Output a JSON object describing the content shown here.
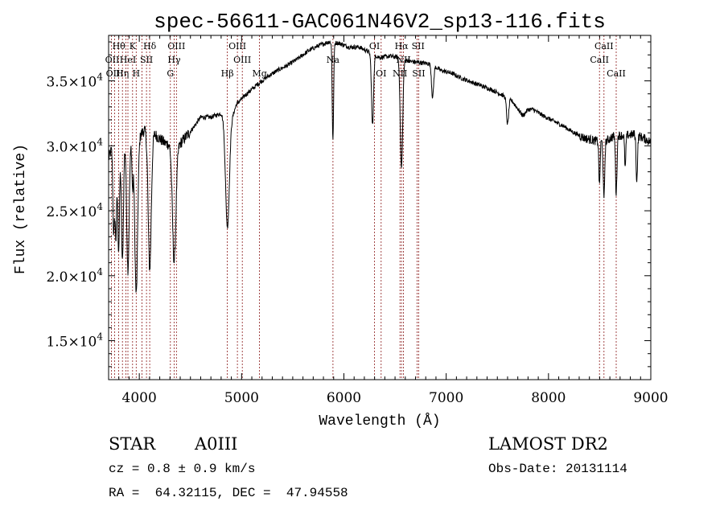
{
  "chart_data": {
    "type": "line",
    "title": "spec-56611-GAC061N46V2_sp13-116.fits",
    "xlabel": "Wavelength (Å)",
    "ylabel": "Flux (relative)",
    "xlim": [
      3700,
      9000
    ],
    "ylim": [
      12000,
      38500
    ],
    "grid": false,
    "x_ticks": [
      4000,
      5000,
      6000,
      7000,
      8000,
      9000
    ],
    "x_tick_labels": [
      "4000",
      "5000",
      "6000",
      "7000",
      "8000",
      "9000"
    ],
    "y_ticks": [
      15000,
      20000,
      25000,
      30000,
      35000
    ],
    "y_tick_labels": [
      {
        "mantissa": "1.5",
        "exp": "4"
      },
      {
        "mantissa": "2.0",
        "exp": "4"
      },
      {
        "mantissa": "2.5",
        "exp": "4"
      },
      {
        "mantissa": "3.0",
        "exp": "4"
      },
      {
        "mantissa": "3.5",
        "exp": "4"
      }
    ],
    "line_color": "#000000",
    "marker_color": "#8b1a1a",
    "continuum": [
      [
        3700,
        29000
      ],
      [
        3760,
        30600
      ],
      [
        3850,
        30500
      ],
      [
        3950,
        30400
      ],
      [
        4050,
        31200
      ],
      [
        4150,
        30900
      ],
      [
        4250,
        30200
      ],
      [
        4380,
        30000
      ],
      [
        4500,
        31100
      ],
      [
        4600,
        32200
      ],
      [
        4700,
        32200
      ],
      [
        4800,
        32500
      ],
      [
        4880,
        31500
      ],
      [
        4950,
        33200
      ],
      [
        5050,
        34000
      ],
      [
        5150,
        34700
      ],
      [
        5250,
        35300
      ],
      [
        5350,
        35800
      ],
      [
        5450,
        36200
      ],
      [
        5550,
        36700
      ],
      [
        5650,
        37300
      ],
      [
        5750,
        37700
      ],
      [
        5850,
        38000
      ],
      [
        5950,
        37900
      ],
      [
        6050,
        37600
      ],
      [
        6150,
        37600
      ],
      [
        6250,
        37200
      ],
      [
        6350,
        36800
      ],
      [
        6450,
        36900
      ],
      [
        6550,
        36800
      ],
      [
        6650,
        36500
      ],
      [
        6750,
        36400
      ],
      [
        6850,
        36300
      ],
      [
        6950,
        35800
      ],
      [
        7050,
        35600
      ],
      [
        7150,
        35200
      ],
      [
        7250,
        34900
      ],
      [
        7350,
        34600
      ],
      [
        7450,
        34300
      ],
      [
        7550,
        33900
      ],
      [
        7650,
        33400
      ],
      [
        7750,
        32300
      ],
      [
        7800,
        32800
      ],
      [
        7850,
        32800
      ],
      [
        7950,
        32300
      ],
      [
        8050,
        31900
      ],
      [
        8150,
        31500
      ],
      [
        8250,
        31000
      ],
      [
        8350,
        30600
      ],
      [
        8450,
        30400
      ],
      [
        8550,
        30300
      ],
      [
        8650,
        30800
      ],
      [
        8750,
        30800
      ],
      [
        8850,
        30900
      ],
      [
        8950,
        30500
      ],
      [
        9000,
        30300
      ]
    ],
    "absorption_lines": [
      {
        "x": 3750,
        "depth": 7000,
        "width": 8
      },
      {
        "x": 3771,
        "depth": 7500,
        "width": 8
      },
      {
        "x": 3798,
        "depth": 8500,
        "width": 9
      },
      {
        "x": 3835,
        "depth": 9500,
        "width": 10
      },
      {
        "x": 3889,
        "depth": 10000,
        "width": 12
      },
      {
        "x": 3934,
        "depth": 3500,
        "width": 6
      },
      {
        "x": 3970,
        "depth": 12000,
        "width": 14
      },
      {
        "x": 4102,
        "depth": 10500,
        "width": 15
      },
      {
        "x": 4341,
        "depth": 9000,
        "width": 17
      },
      {
        "x": 4861,
        "depth": 8000,
        "width": 18
      },
      {
        "x": 5890,
        "depth": 4500,
        "width": 6
      },
      {
        "x": 5896,
        "depth": 4000,
        "width": 6
      },
      {
        "x": 6280,
        "depth": 5500,
        "width": 10
      },
      {
        "x": 6563,
        "depth": 8500,
        "width": 12
      },
      {
        "x": 6867,
        "depth": 2500,
        "width": 10
      },
      {
        "x": 7600,
        "depth": 2000,
        "width": 10
      },
      {
        "x": 8498,
        "depth": 3500,
        "width": 6
      },
      {
        "x": 8542,
        "depth": 4500,
        "width": 7
      },
      {
        "x": 8662,
        "depth": 4500,
        "width": 7
      },
      {
        "x": 8750,
        "depth": 2500,
        "width": 6
      },
      {
        "x": 8863,
        "depth": 3500,
        "width": 7
      }
    ],
    "marker_lines": [
      3727,
      3760,
      3798,
      3835,
      3869,
      3889,
      3934,
      3970,
      4026,
      4070,
      4102,
      4304,
      4341,
      4363,
      4861,
      4959,
      5007,
      5175,
      5893,
      6300,
      6364,
      6548,
      6563,
      6583,
      6716,
      6731,
      8498,
      8542,
      8662
    ],
    "annotations": [
      {
        "text": "Hθ",
        "x": 3800,
        "row": 1
      },
      {
        "text": "K",
        "x": 3934,
        "row": 1
      },
      {
        "text": "Hδ",
        "x": 4102,
        "row": 1
      },
      {
        "text": "OIII",
        "x": 4363,
        "row": 1
      },
      {
        "text": "OIII",
        "x": 4959,
        "row": 1
      },
      {
        "text": "OI",
        "x": 6300,
        "row": 1
      },
      {
        "text": "Hα",
        "x": 6563,
        "row": 1
      },
      {
        "text": "SII",
        "x": 6725,
        "row": 1
      },
      {
        "text": "CaII",
        "x": 8542,
        "row": 1
      },
      {
        "text": "OII",
        "x": 3735,
        "row": 2
      },
      {
        "text": "HeI",
        "x": 3889,
        "row": 2
      },
      {
        "text": "SII",
        "x": 4070,
        "row": 2
      },
      {
        "text": "Hγ",
        "x": 4341,
        "row": 2
      },
      {
        "text": "OIII",
        "x": 5007,
        "row": 2
      },
      {
        "text": "Na",
        "x": 5893,
        "row": 2
      },
      {
        "text": "NII",
        "x": 6583,
        "row": 2
      },
      {
        "text": "CaII",
        "x": 8498,
        "row": 2
      },
      {
        "text": "OIII",
        "x": 3760,
        "row": 3
      },
      {
        "text": "Hη",
        "x": 3835,
        "row": 3
      },
      {
        "text": "H",
        "x": 3970,
        "row": 3
      },
      {
        "text": "G",
        "x": 4304,
        "row": 3
      },
      {
        "text": "Hβ",
        "x": 4861,
        "row": 3
      },
      {
        "text": "Mg",
        "x": 5175,
        "row": 3
      },
      {
        "text": "OI",
        "x": 6364,
        "row": 3
      },
      {
        "text": "NII",
        "x": 6548,
        "row": 3
      },
      {
        "text": "SII",
        "x": 6731,
        "row": 3
      },
      {
        "text": "CaII",
        "x": 8662,
        "row": 3
      }
    ]
  },
  "info": {
    "object_type": "STAR",
    "subclass": "A0III",
    "survey": "LAMOST DR2",
    "cz": "cz = 0.8 ± 0.9 km/s",
    "obs_date": "Obs-Date: 20131114",
    "coords": "RA =  64.32115, DEC =  47.94558"
  }
}
